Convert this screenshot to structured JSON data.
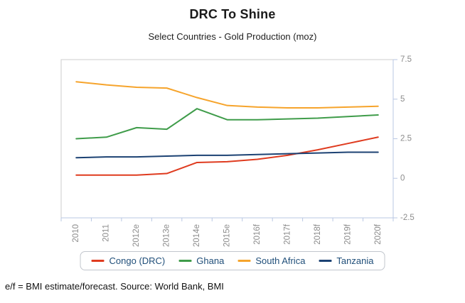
{
  "header": {
    "title": "DRC To Shine",
    "subtitle": "Select Countries - Gold Production (moz)"
  },
  "footer": {
    "note": "e/f = BMI estimate/forecast. Source: World Bank, BMI"
  },
  "chart_data": {
    "type": "line",
    "title": "DRC To Shine",
    "subtitle": "Select Countries - Gold Production (moz)",
    "categories": [
      "2010",
      "2011",
      "2012e",
      "2013e",
      "2014e",
      "2015e",
      "2016f",
      "2017f",
      "2018f",
      "2019f",
      "2020f"
    ],
    "series": [
      {
        "name": "Congo (DRC)",
        "color": "#df3b1f",
        "values": [
          0.2,
          0.2,
          0.2,
          0.3,
          1.0,
          1.05,
          1.2,
          1.45,
          1.8,
          2.2,
          2.6
        ]
      },
      {
        "name": "Ghana",
        "color": "#3f9c4a",
        "values": [
          2.5,
          2.6,
          3.2,
          3.1,
          4.4,
          3.7,
          3.7,
          3.75,
          3.8,
          3.9,
          4.0
        ]
      },
      {
        "name": "South Africa",
        "color": "#f6a42c",
        "values": [
          6.1,
          5.9,
          5.75,
          5.7,
          5.1,
          4.6,
          4.5,
          4.45,
          4.45,
          4.5,
          4.55
        ]
      },
      {
        "name": "Tanzania",
        "color": "#1c4273",
        "values": [
          1.3,
          1.35,
          1.35,
          1.4,
          1.45,
          1.45,
          1.5,
          1.55,
          1.6,
          1.65,
          1.65
        ]
      }
    ],
    "ylim": [
      -2.5,
      7.5
    ],
    "yticks": [
      -2.5,
      0,
      2.5,
      5,
      7.5
    ],
    "y_axis_side": "right",
    "grid": false,
    "legend_position": "bottom",
    "colors": {
      "axis": "#b9c7e3",
      "plot_border": "#cdcdcd",
      "tick_label": "#8c8c8c",
      "legend_text": "#1f4e79"
    }
  }
}
